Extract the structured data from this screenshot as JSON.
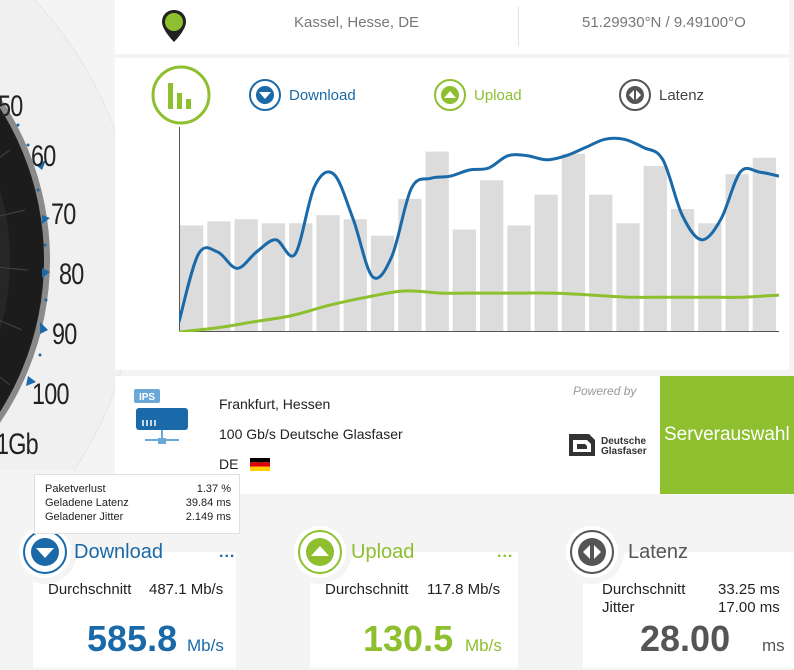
{
  "location": {
    "city": "Kassel, Hesse, DE",
    "coordinates": "51.29930°N / 9.49100°O"
  },
  "gauge": {
    "labels": [
      "50",
      "60",
      "70",
      "80",
      "90",
      "100",
      "1Gb"
    ]
  },
  "legend": {
    "download": "Download",
    "upload": "Upload",
    "latency": "Latenz"
  },
  "chart_data": {
    "type": "bar",
    "bars": [
      0.52,
      0.54,
      0.55,
      0.53,
      0.53,
      0.57,
      0.55,
      0.47,
      0.65,
      0.88,
      0.5,
      0.74,
      0.52,
      0.67,
      0.87,
      0.67,
      0.53,
      0.81,
      0.6,
      0.53,
      0.77,
      0.85
    ],
    "series": [
      {
        "name": "Download",
        "values": [
          0.05,
          0.38,
          0.39,
          0.31,
          0.39,
          0.45,
          0.38,
          0.71,
          0.77,
          0.55,
          0.27,
          0.37,
          0.7,
          0.75,
          0.76,
          0.79,
          0.8,
          0.86,
          0.86,
          0.84,
          0.86,
          0.9,
          0.94,
          0.94,
          0.9,
          0.84,
          0.57,
          0.45,
          0.55,
          0.78,
          0.78,
          0.76
        ]
      },
      {
        "name": "Upload",
        "values": [
          0.0,
          0.02,
          0.05,
          0.08,
          0.13,
          0.17,
          0.2,
          0.19,
          0.19,
          0.19,
          0.19,
          0.18,
          0.17,
          0.17,
          0.17,
          0.17,
          0.18
        ]
      }
    ]
  },
  "server": {
    "name": "Frankfurt, Hessen",
    "isp": "100 Gb/s Deutsche Glasfaser",
    "country": "DE",
    "powered_by": "Powered by",
    "sponsor_line1": "Deutsche",
    "sponsor_line2": "Glasfaser",
    "select_button": "Serverauswahl",
    "badge": "IPS"
  },
  "tooltip": {
    "rows": [
      {
        "label": "Paketverlust",
        "value": "1.37 %"
      },
      {
        "label": "Geladene Latenz",
        "value": "39.84 ms"
      },
      {
        "label": "Geladener Jitter",
        "value": "2.149 ms"
      }
    ]
  },
  "results": {
    "download": {
      "title": "Download",
      "more": "...",
      "avg_label": "Durchschnitt",
      "avg_value": "487.1 Mb/s",
      "value": "585.8",
      "unit": "Mb/s"
    },
    "upload": {
      "title": "Upload",
      "more": "...",
      "avg_label": "Durchschnitt",
      "avg_value": "117.8 Mb/s",
      "value": "130.5",
      "unit": "Mb/s"
    },
    "latency": {
      "title": "Latenz",
      "avg_label": "Durchschnitt",
      "avg_value": "33.25 ms",
      "jitter_label": "Jitter",
      "jitter_value": "17.00 ms",
      "value": "28.00",
      "unit": "ms"
    }
  },
  "colors": {
    "download": "#1a69a8",
    "upload": "#8dbf2e",
    "latency": "#555555"
  }
}
